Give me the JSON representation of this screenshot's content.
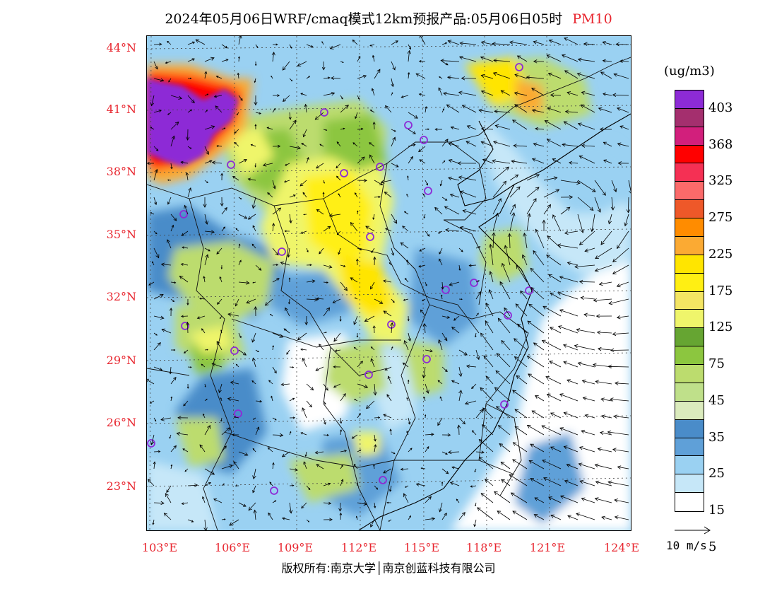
{
  "title": {
    "main": "2024年05月06日WRF/cmaq模式12km预报产品:05月06日05时",
    "pollutant": "PM10"
  },
  "lat_labels": [
    "44°N",
    "41°N",
    "38°N",
    "35°N",
    "32°N",
    "29°N",
    "26°N",
    "23°N"
  ],
  "lon_labels": [
    "103°E",
    "106°E",
    "109°E",
    "112°E",
    "115°E",
    "118°E",
    "121°E",
    "124°E"
  ],
  "legend": {
    "unit": "(ug/m3)",
    "levels": [
      {
        "label": "403",
        "color": "#8e2bd6",
        "top": "#7d22c9"
      },
      {
        "label": "368",
        "color": "#a8306b"
      },
      {
        "label": "325",
        "color": "#d41f7a"
      },
      {
        "label": "275",
        "color": "#ff0000"
      },
      {
        "label": "225",
        "color": "#f5294c"
      },
      {
        "label": "175",
        "color": "#fc6868"
      },
      {
        "label": "125",
        "color": "#f05a28"
      },
      {
        "label": "75",
        "color": "#ff8a00"
      },
      {
        "label": "45",
        "color": "#fba830"
      },
      {
        "label": "35",
        "color": "#ffe600"
      },
      {
        "label": "25",
        "color": "#ffef00"
      },
      {
        "label": "15",
        "color": "#f3e65a"
      },
      {
        "label": "5",
        "color": "#eef562"
      }
    ],
    "colors": [
      "#8d2bd6",
      "#a42f6e",
      "#d21f7c",
      "#ff0000",
      "#f53054",
      "#fb6a6a",
      "#ee5829",
      "#ff8c00",
      "#fbaa33",
      "#ffe500",
      "#ffef13",
      "#f4e563",
      "#eff56b",
      "#66a532",
      "#8cc63f",
      "#bcdc6e",
      "#bfe08a",
      "#dbebbd",
      "#4a8cc9",
      "#5fa0d8",
      "#9ad1f2",
      "#c6e7f8",
      "#ffffff"
    ],
    "labels": [
      "403",
      "368",
      "325",
      "275",
      "225",
      "175",
      "125",
      "75",
      "45",
      "35",
      "25",
      "15",
      "5"
    ]
  },
  "wind_reference": {
    "label": "10 m/s"
  },
  "copyright": "版权所有:南京大学│南京创蓝科技有限公司"
}
